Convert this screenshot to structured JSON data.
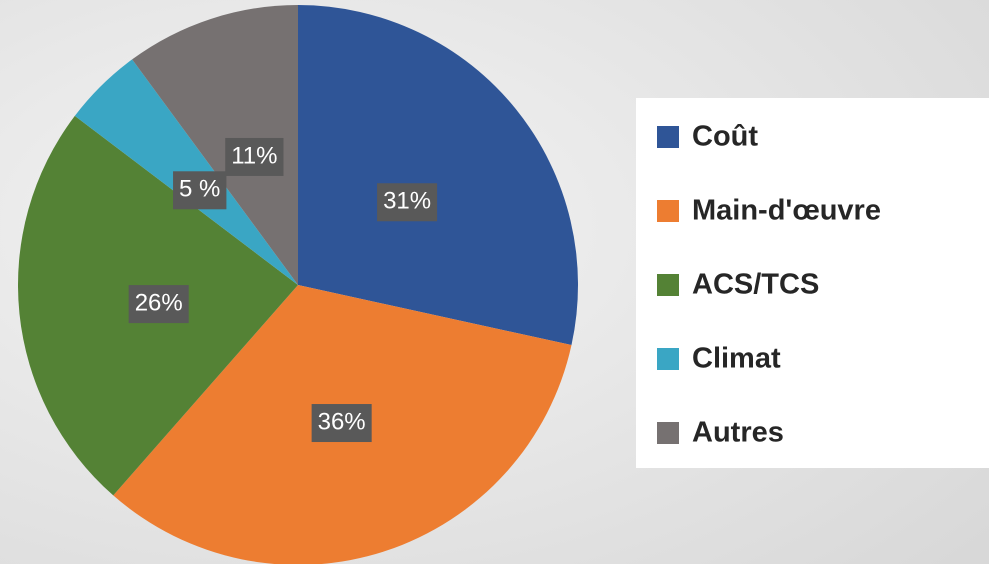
{
  "chart_data": {
    "type": "pie",
    "categories": [
      "Coût",
      "Main-d'œuvre",
      "ACS/TCS",
      "Climat",
      "Autres"
    ],
    "values": [
      31,
      36,
      26,
      5,
      11
    ],
    "value_labels": [
      "31%",
      "36%",
      "26%",
      "5 %",
      "11%"
    ],
    "colors": [
      "#2f5597",
      "#ed7d31",
      "#548235",
      "#3aa6c4",
      "#767171"
    ],
    "legend": "right"
  }
}
